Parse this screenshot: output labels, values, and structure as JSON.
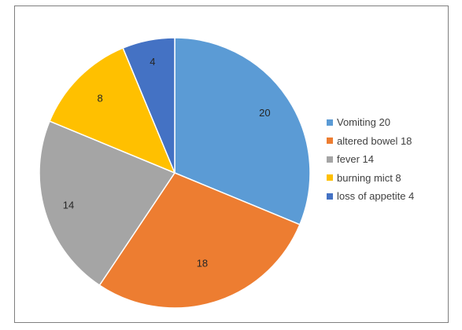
{
  "chart_data": {
    "type": "pie",
    "slices": [
      {
        "value": 20,
        "label": "20",
        "legend": "Vomiting 20",
        "color": "#5b9bd5"
      },
      {
        "value": 18,
        "label": "18",
        "legend": "altered bowel 18",
        "color": "#ed7d31"
      },
      {
        "value": 14,
        "label": "14",
        "legend": "fever 14",
        "color": "#a5a5a5"
      },
      {
        "value": 8,
        "label": "8",
        "legend": "burning mict 8",
        "color": "#ffc000"
      },
      {
        "value": 4,
        "label": "4",
        "legend": "loss of appetite 4",
        "color": "#4472c4"
      }
    ],
    "start_angle": "12 o'clock",
    "direction": "clockwise",
    "legend_position": "right",
    "title": ""
  }
}
